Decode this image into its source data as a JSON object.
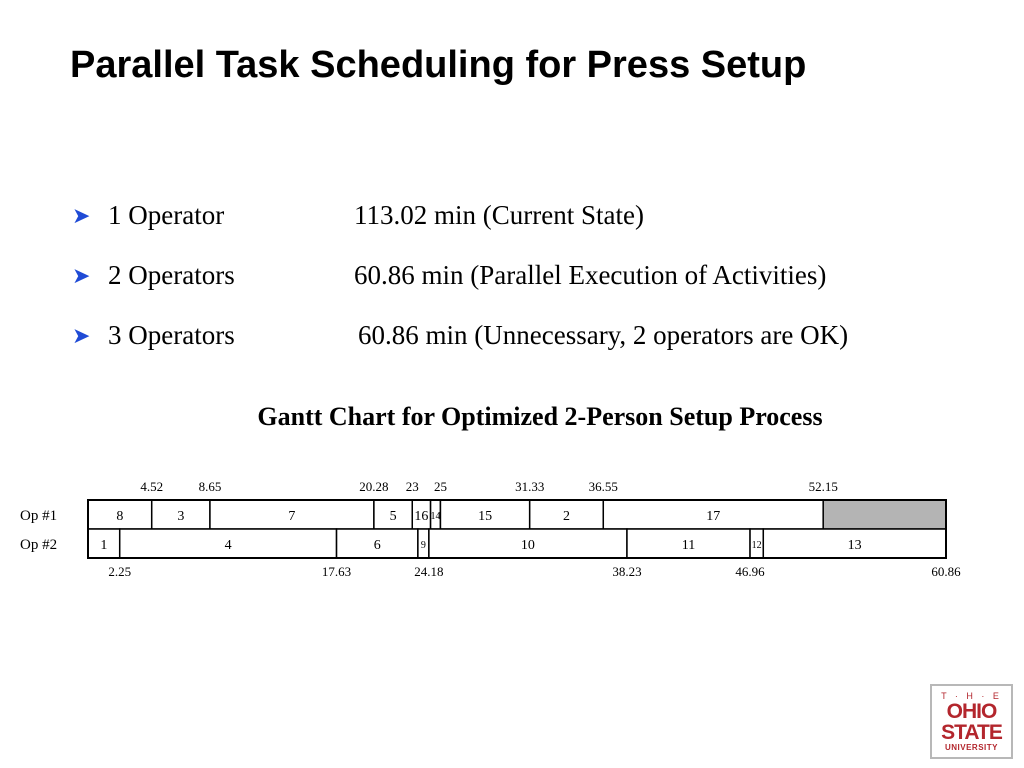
{
  "slide": {
    "title": "Parallel Task Scheduling for Press Setup",
    "bullets": [
      {
        "operators": "1 Operator",
        "result": "113.02 min (Current State)"
      },
      {
        "operators": "2 Operators",
        "result": "60.86 min (Parallel Execution of Activities)"
      },
      {
        "operators": "3 Operators",
        "result": "60.86 min (Unnecessary, 2 operators are OK)"
      }
    ],
    "bullet_icon": "arrow-bullet-icon",
    "colors": {
      "bullet": "#1f4bd6",
      "idle": "#b4b4b4",
      "logo": "#b3262d"
    }
  },
  "chart_data": {
    "type": "gantt",
    "title": "Gantt Chart for Optimized 2-Person Setup Process",
    "total_time": 60.86,
    "rows": [
      {
        "name": "Op #1",
        "tasks": [
          {
            "label": "8",
            "start": 0,
            "end": 4.52
          },
          {
            "label": "3",
            "start": 4.52,
            "end": 8.65
          },
          {
            "label": "7",
            "start": 8.65,
            "end": 20.28
          },
          {
            "label": "5",
            "start": 20.28,
            "end": 23
          },
          {
            "label": "16",
            "start": 23,
            "end": 24.3
          },
          {
            "label": "14",
            "start": 24.3,
            "end": 25
          },
          {
            "label": "15",
            "start": 25,
            "end": 31.33
          },
          {
            "label": "2",
            "start": 31.33,
            "end": 36.55
          },
          {
            "label": "17",
            "start": 36.55,
            "end": 52.15
          },
          {
            "label": "",
            "start": 52.15,
            "end": 60.86,
            "idle": true
          }
        ]
      },
      {
        "name": "Op #2",
        "tasks": [
          {
            "label": "1",
            "start": 0,
            "end": 2.25
          },
          {
            "label": "4",
            "start": 2.25,
            "end": 17.63
          },
          {
            "label": "6",
            "start": 17.63,
            "end": 23.4
          },
          {
            "label": "9",
            "start": 23.4,
            "end": 24.18
          },
          {
            "label": "10",
            "start": 24.18,
            "end": 38.23
          },
          {
            "label": "11",
            "start": 38.23,
            "end": 46.96
          },
          {
            "label": "12",
            "start": 46.96,
            "end": 47.9
          },
          {
            "label": "13",
            "start": 47.9,
            "end": 60.86
          }
        ]
      }
    ],
    "top_ticks": [
      "4.52",
      "8.65",
      "20.28",
      "23",
      "25",
      "31.33",
      "36.55",
      "52.15"
    ],
    "bottom_ticks": [
      "2.25",
      "17.63",
      "24.18",
      "38.23",
      "46.96",
      "60.86"
    ]
  },
  "logo": {
    "the": "T · H · E",
    "ohio": "OHIO",
    "state": "STATE",
    "university": "UNIVERSITY"
  }
}
